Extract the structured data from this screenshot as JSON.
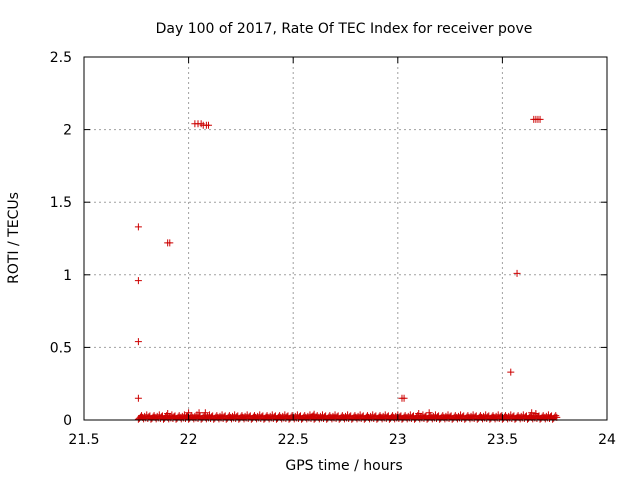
{
  "chart_data": {
    "type": "scatter",
    "title": "Day 100 of 2017, Rate Of TEC Index for receiver pove",
    "xlabel": "GPS time / hours",
    "ylabel": "ROTI / TECUs",
    "xlim": [
      21.5,
      24
    ],
    "ylim": [
      0,
      2.5
    ],
    "xticks": [
      {
        "value": 21.5,
        "label": "21.5"
      },
      {
        "value": 22,
        "label": "22"
      },
      {
        "value": 22.5,
        "label": "22.5"
      },
      {
        "value": 23,
        "label": "23"
      },
      {
        "value": 23.5,
        "label": "23.5"
      },
      {
        "value": 24,
        "label": "24"
      }
    ],
    "yticks": [
      {
        "value": 0,
        "label": "0"
      },
      {
        "value": 0.5,
        "label": "0.5"
      },
      {
        "value": 1,
        "label": "1"
      },
      {
        "value": 1.5,
        "label": "1.5"
      },
      {
        "value": 2,
        "label": "2"
      },
      {
        "value": 2.5,
        "label": "2.5"
      }
    ],
    "grid": true,
    "legend": "none",
    "marker": "plus",
    "marker_color": "#cc0000",
    "grid_color": "#a0a0a0",
    "baseline": {
      "x_start": 21.76,
      "x_end": 23.76,
      "x_step": 0.005,
      "y_values": [
        0.005,
        0.012,
        0.02,
        0.03,
        0.018,
        0.008,
        0.025,
        0.015,
        0.035,
        0.01,
        0.022,
        0.028
      ]
    },
    "points": [
      {
        "x": 21.76,
        "y": 1.33
      },
      {
        "x": 21.76,
        "y": 0.96
      },
      {
        "x": 21.76,
        "y": 0.54
      },
      {
        "x": 21.76,
        "y": 0.15
      },
      {
        "x": 21.9,
        "y": 1.22
      },
      {
        "x": 21.91,
        "y": 1.22
      },
      {
        "x": 22.03,
        "y": 2.04
      },
      {
        "x": 22.045,
        "y": 2.04
      },
      {
        "x": 22.06,
        "y": 2.04
      },
      {
        "x": 22.07,
        "y": 2.03
      },
      {
        "x": 22.085,
        "y": 2.03
      },
      {
        "x": 22.095,
        "y": 2.03
      },
      {
        "x": 22.0,
        "y": 0.05
      },
      {
        "x": 22.05,
        "y": 0.05
      },
      {
        "x": 22.08,
        "y": 0.05
      },
      {
        "x": 21.9,
        "y": 0.045
      },
      {
        "x": 22.6,
        "y": 0.04
      },
      {
        "x": 23.02,
        "y": 0.15
      },
      {
        "x": 23.03,
        "y": 0.15
      },
      {
        "x": 23.1,
        "y": 0.045
      },
      {
        "x": 23.15,
        "y": 0.05
      },
      {
        "x": 23.54,
        "y": 0.33
      },
      {
        "x": 23.57,
        "y": 1.01
      },
      {
        "x": 23.65,
        "y": 2.07
      },
      {
        "x": 23.66,
        "y": 2.07
      },
      {
        "x": 23.67,
        "y": 2.07
      },
      {
        "x": 23.68,
        "y": 2.07
      },
      {
        "x": 23.64,
        "y": 0.05
      },
      {
        "x": 23.66,
        "y": 0.045
      }
    ]
  }
}
